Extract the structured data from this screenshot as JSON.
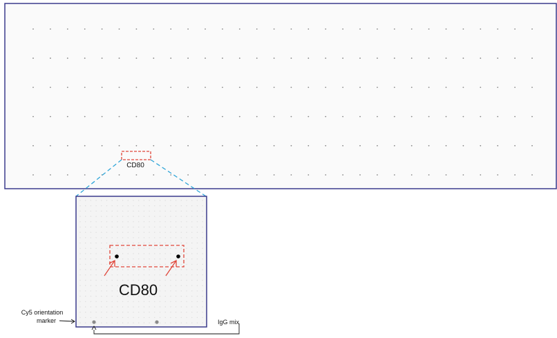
{
  "array_panel": {
    "label": "CD80",
    "row_count": 6,
    "column_count": 30
  },
  "zoom_panel": {
    "label": "CD80",
    "hit_spots": 2
  },
  "annotations": {
    "cy5_marker_line1": "Cy5 orientation",
    "cy5_marker_line2": "marker",
    "igg_mix": "IgG mix"
  },
  "colors": {
    "frame": "#3a3a8c",
    "highlight": "#e0463a",
    "zoom_line": "#2fa5d8",
    "spot": "#9a9a9a",
    "hit_spot": "#000000"
  }
}
